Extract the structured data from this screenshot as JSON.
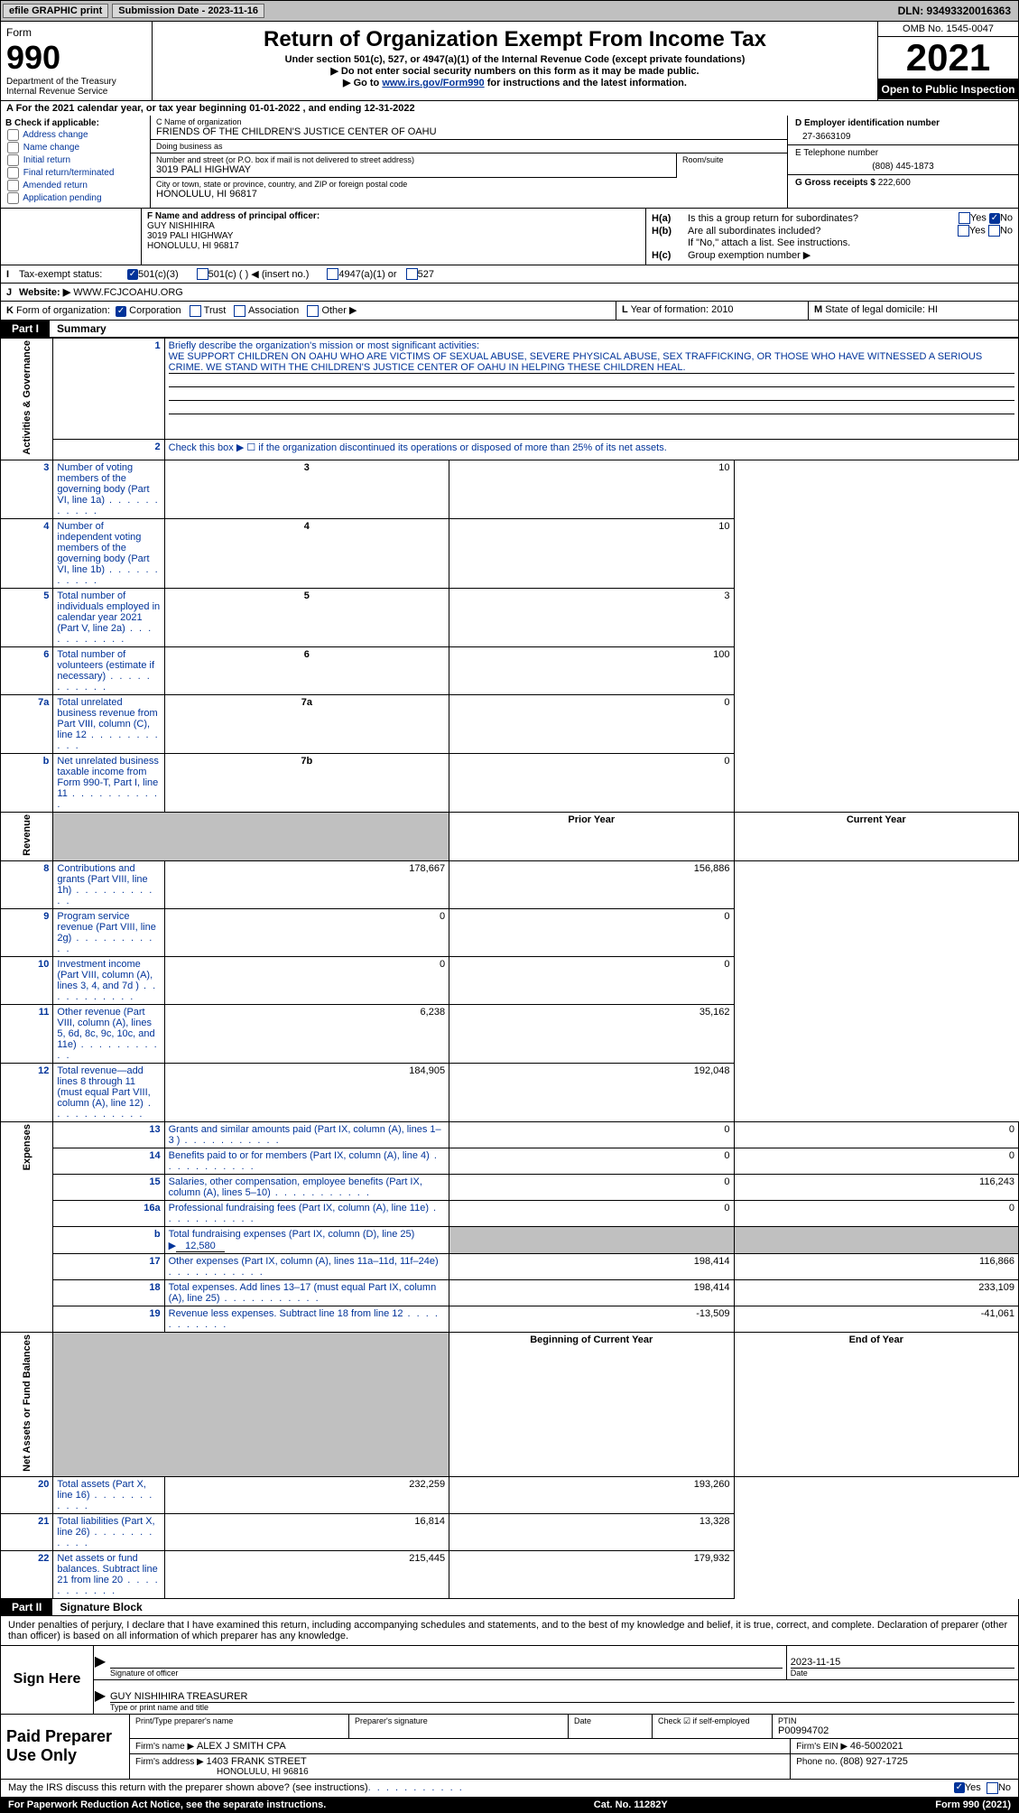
{
  "topbar": {
    "efile": "efile GRAPHIC print",
    "submission": "Submission Date - 2023-11-16",
    "dln": "DLN: 93493320016363"
  },
  "header": {
    "form_label": "Form",
    "form_num": "990",
    "dept": "Department of the Treasury",
    "irs": "Internal Revenue Service",
    "title": "Return of Organization Exempt From Income Tax",
    "sub": "Under section 501(c), 527, or 4947(a)(1) of the Internal Revenue Code (except private foundations)",
    "hint1": "▶ Do not enter social security numbers on this form as it may be made public.",
    "hint2_pre": "▶ Go to ",
    "hint2_link": "www.irs.gov/Form990",
    "hint2_post": " for instructions and the latest information.",
    "omb": "OMB No. 1545-0047",
    "year": "2021",
    "open": "Open to Public Inspection"
  },
  "sectionA": "A   For the 2021 calendar year, or tax year beginning 01-01-2022    , and ending 12-31-2022",
  "boxB": {
    "title": "B Check if applicable:",
    "items": [
      "Address change",
      "Name change",
      "Initial return",
      "Final return/terminated",
      "Amended return",
      "Application pending"
    ]
  },
  "boxC": {
    "name_label": "C Name of organization",
    "name": "FRIENDS OF THE CHILDREN'S JUSTICE CENTER OF OAHU",
    "dba_label": "Doing business as",
    "dba": "",
    "addr_label": "Number and street (or P.O. box if mail is not delivered to street address)",
    "addr": "3019 PALI HIGHWAY",
    "room_label": "Room/suite",
    "city_label": "City or town, state or province, country, and ZIP or foreign postal code",
    "city": "HONOLULU, HI  96817"
  },
  "boxD": {
    "ein_label": "D Employer identification number",
    "ein": "27-3663109",
    "phone_label": "E Telephone number",
    "phone": "(808) 445-1873",
    "gross_label": "G Gross receipts $",
    "gross": "222,600"
  },
  "boxF": {
    "label": "F Name and address of principal officer:",
    "name": "GUY NISHIHIRA",
    "addr1": "3019 PALI HIGHWAY",
    "addr2": "HONOLULU, HI  96817"
  },
  "boxH": {
    "a_label": "H(a)",
    "a_text": "Is this a group return for subordinates?",
    "b_label": "H(b)",
    "b_text": "Are all subordinates included?",
    "b_hint": "If \"No,\" attach a list. See instructions.",
    "c_label": "H(c)",
    "c_text": "Group exemption number ▶",
    "yes": "Yes",
    "no": "No"
  },
  "rowI": {
    "label": "I",
    "text": "Tax-exempt status:",
    "opt1": "501(c)(3)",
    "opt2": "501(c) (   ) ◀ (insert no.)",
    "opt3": "4947(a)(1) or",
    "opt4": "527"
  },
  "rowJ": {
    "label": "J",
    "text": "Website: ▶",
    "val": "WWW.FCJCOAHU.ORG"
  },
  "rowK": {
    "label": "K",
    "text": "Form of organization:",
    "opts": [
      "Corporation",
      "Trust",
      "Association",
      "Other ▶"
    ]
  },
  "rowL": {
    "label": "L",
    "text": "Year of formation:",
    "val": "2010"
  },
  "rowM": {
    "label": "M",
    "text": "State of legal domicile:",
    "val": "HI"
  },
  "part1": {
    "num": "Part I",
    "title": "Summary"
  },
  "summary": {
    "tab_activities": "Activities & Governance",
    "tab_revenue": "Revenue",
    "tab_expenses": "Expenses",
    "tab_net": "Net Assets or Fund Balances",
    "line1_label": "Briefly describe the organization's mission or most significant activities:",
    "line1_text": "WE SUPPORT CHILDREN ON OAHU WHO ARE VICTIMS OF SEXUAL ABUSE, SEVERE PHYSICAL ABUSE, SEX TRAFFICKING, OR THOSE WHO HAVE WITNESSED A SERIOUS CRIME. WE STAND WITH THE CHILDREN'S JUSTICE CENTER OF OAHU IN HELPING THESE CHILDREN HEAL.",
    "line2": "Check this box ▶ ☐  if the organization discontinued its operations or disposed of more than 25% of its net assets.",
    "lines_gov": [
      {
        "n": "3",
        "t": "Number of voting members of the governing body (Part VI, line 1a)",
        "k": "3",
        "v": "10"
      },
      {
        "n": "4",
        "t": "Number of independent voting members of the governing body (Part VI, line 1b)",
        "k": "4",
        "v": "10"
      },
      {
        "n": "5",
        "t": "Total number of individuals employed in calendar year 2021 (Part V, line 2a)",
        "k": "5",
        "v": "3"
      },
      {
        "n": "6",
        "t": "Total number of volunteers (estimate if necessary)",
        "k": "6",
        "v": "100"
      },
      {
        "n": "7a",
        "t": "Total unrelated business revenue from Part VIII, column (C), line 12",
        "k": "7a",
        "v": "0"
      },
      {
        "n": "b",
        "t": "Net unrelated business taxable income from Form 990-T, Part I, line 11",
        "k": "7b",
        "v": "0"
      }
    ],
    "hdr_prior": "Prior Year",
    "hdr_current": "Current Year",
    "lines_rev": [
      {
        "n": "8",
        "t": "Contributions and grants (Part VIII, line 1h)",
        "p": "178,667",
        "c": "156,886"
      },
      {
        "n": "9",
        "t": "Program service revenue (Part VIII, line 2g)",
        "p": "0",
        "c": "0"
      },
      {
        "n": "10",
        "t": "Investment income (Part VIII, column (A), lines 3, 4, and 7d )",
        "p": "0",
        "c": "0"
      },
      {
        "n": "11",
        "t": "Other revenue (Part VIII, column (A), lines 5, 6d, 8c, 9c, 10c, and 11e)",
        "p": "6,238",
        "c": "35,162"
      },
      {
        "n": "12",
        "t": "Total revenue—add lines 8 through 11 (must equal Part VIII, column (A), line 12)",
        "p": "184,905",
        "c": "192,048"
      }
    ],
    "lines_exp": [
      {
        "n": "13",
        "t": "Grants and similar amounts paid (Part IX, column (A), lines 1–3 )",
        "p": "0",
        "c": "0"
      },
      {
        "n": "14",
        "t": "Benefits paid to or for members (Part IX, column (A), line 4)",
        "p": "0",
        "c": "0"
      },
      {
        "n": "15",
        "t": "Salaries, other compensation, employee benefits (Part IX, column (A), lines 5–10)",
        "p": "0",
        "c": "116,243"
      },
      {
        "n": "16a",
        "t": "Professional fundraising fees (Part IX, column (A), line 11e)",
        "p": "0",
        "c": "0"
      }
    ],
    "line16b": {
      "n": "b",
      "t": "Total fundraising expenses (Part IX, column (D), line 25) ▶",
      "v": "12,580"
    },
    "lines_exp2": [
      {
        "n": "17",
        "t": "Other expenses (Part IX, column (A), lines 11a–11d, 11f–24e)",
        "p": "198,414",
        "c": "116,866"
      },
      {
        "n": "18",
        "t": "Total expenses. Add lines 13–17 (must equal Part IX, column (A), line 25)",
        "p": "198,414",
        "c": "233,109"
      },
      {
        "n": "19",
        "t": "Revenue less expenses. Subtract line 18 from line 12",
        "p": "-13,509",
        "c": "-41,061"
      }
    ],
    "hdr_bgn": "Beginning of Current Year",
    "hdr_end": "End of Year",
    "lines_net": [
      {
        "n": "20",
        "t": "Total assets (Part X, line 16)",
        "p": "232,259",
        "c": "193,260"
      },
      {
        "n": "21",
        "t": "Total liabilities (Part X, line 26)",
        "p": "16,814",
        "c": "13,328"
      },
      {
        "n": "22",
        "t": "Net assets or fund balances. Subtract line 21 from line 20",
        "p": "215,445",
        "c": "179,932"
      }
    ]
  },
  "part2": {
    "num": "Part II",
    "title": "Signature Block"
  },
  "sig": {
    "declaration": "Under penalties of perjury, I declare that I have examined this return, including accompanying schedules and statements, and to the best of my knowledge and belief, it is true, correct, and complete. Declaration of preparer (other than officer) is based on all information of which preparer has any knowledge.",
    "sign_here": "Sign Here",
    "sig_of_officer": "Signature of officer",
    "date_label": "Date",
    "date_val": "2023-11-15",
    "name_title": "GUY NISHIHIRA  TREASURER",
    "type_label": "Type or print name and title"
  },
  "prep": {
    "label": "Paid Preparer Use Only",
    "print_name_label": "Print/Type preparer's name",
    "print_name": "",
    "sig_label": "Preparer's signature",
    "date_label": "Date",
    "check_label": "Check ☑ if self-employed",
    "ptin_label": "PTIN",
    "ptin": "P00994702",
    "firm_name_label": "Firm's name    ▶",
    "firm_name": "ALEX J SMITH CPA",
    "firm_ein_label": "Firm's EIN ▶",
    "firm_ein": "46-5002021",
    "firm_addr_label": "Firm's address ▶",
    "firm_addr1": "1403 FRANK STREET",
    "firm_addr2": "HONOLULU, HI  96816",
    "phone_label": "Phone no.",
    "phone": "(808) 927-1725"
  },
  "footer": {
    "discuss": "May the IRS discuss this return with the preparer shown above? (see instructions)",
    "yes": "Yes",
    "no": "No",
    "paperwork": "For Paperwork Reduction Act Notice, see the separate instructions.",
    "cat": "Cat. No. 11282Y",
    "form": "Form 990 (2021)"
  }
}
